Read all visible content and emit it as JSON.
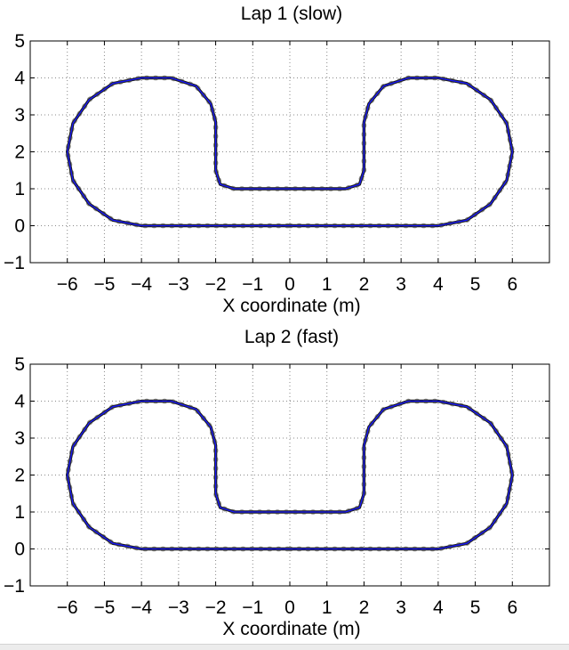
{
  "chart_data": [
    {
      "type": "line",
      "title": "Lap 1 (slow)",
      "xlabel": "X coordinate (m)",
      "ylabel": "",
      "xlim": [
        -7,
        7
      ],
      "ylim": [
        -1,
        5
      ],
      "xticks": [
        -6,
        -5,
        -4,
        -3,
        -2,
        -1,
        0,
        1,
        2,
        3,
        4,
        5,
        6
      ],
      "yticks": [
        -1,
        0,
        1,
        2,
        3,
        4,
        5
      ],
      "xtick_labels": [
        "−6",
        "−5",
        "−4",
        "−3",
        "−2",
        "−1",
        "0",
        "1",
        "2",
        "3",
        "4",
        "5",
        "6"
      ],
      "ytick_labels": [
        "−1",
        "0",
        "1",
        "2",
        "3",
        "4",
        "5"
      ],
      "grid": true,
      "grid_style": "dotted",
      "series": [
        {
          "role": "reference path",
          "style": "solid line",
          "color": "#1a1aff",
          "x": [
            0,
            4,
            4.77,
            5.41,
            5.85,
            6,
            5.85,
            5.41,
            4.77,
            4,
            3.2,
            2.53,
            2.13,
            2,
            2,
            1.88,
            1.5,
            1,
            0,
            -1,
            -1.5,
            -1.88,
            -2,
            -2,
            -2.13,
            -2.53,
            -3.2,
            -4,
            -4.77,
            -5.41,
            -5.85,
            -6,
            -5.85,
            -5.41,
            -4.77,
            -4,
            0
          ],
          "y": [
            0,
            0,
            0.15,
            0.59,
            1.23,
            2,
            2.77,
            3.41,
            3.85,
            4,
            4,
            3.78,
            3.3,
            2.8,
            1.5,
            1.12,
            1,
            1,
            1,
            1,
            1,
            1.12,
            1.5,
            2.8,
            3.3,
            3.78,
            4,
            4,
            3.85,
            3.41,
            2.77,
            2,
            1.23,
            0.59,
            0.15,
            0,
            0
          ]
        },
        {
          "role": "measured trajectory",
          "style": "dense markers",
          "color": "#000000",
          "x": [
            0,
            4,
            4.77,
            5.41,
            5.85,
            6,
            5.85,
            5.41,
            4.77,
            4,
            3.2,
            2.53,
            2.13,
            2,
            2,
            1.88,
            1.5,
            1,
            0,
            -1,
            -1.5,
            -1.88,
            -2,
            -2,
            -2.13,
            -2.53,
            -3.2,
            -4,
            -4.77,
            -5.41,
            -5.85,
            -6,
            -5.85,
            -5.41,
            -4.77,
            -4,
            0
          ],
          "y": [
            0,
            0,
            0.15,
            0.59,
            1.23,
            2,
            2.77,
            3.41,
            3.85,
            4,
            4,
            3.78,
            3.3,
            2.8,
            1.5,
            1.12,
            1,
            1,
            1,
            1,
            1,
            1.12,
            1.5,
            2.8,
            3.3,
            3.78,
            4,
            4,
            3.85,
            3.41,
            2.77,
            2,
            1.23,
            0.59,
            0.15,
            0,
            0
          ]
        }
      ]
    },
    {
      "type": "line",
      "title": "Lap 2 (fast)",
      "xlabel": "X coordinate (m)",
      "ylabel": "",
      "xlim": [
        -7,
        7
      ],
      "ylim": [
        -1,
        5
      ],
      "xticks": [
        -6,
        -5,
        -4,
        -3,
        -2,
        -1,
        0,
        1,
        2,
        3,
        4,
        5,
        6
      ],
      "yticks": [
        -1,
        0,
        1,
        2,
        3,
        4,
        5
      ],
      "xtick_labels": [
        "−6",
        "−5",
        "−4",
        "−3",
        "−2",
        "−1",
        "0",
        "1",
        "2",
        "3",
        "4",
        "5",
        "6"
      ],
      "ytick_labels": [
        "−1",
        "0",
        "1",
        "2",
        "3",
        "4",
        "5"
      ],
      "grid": true,
      "grid_style": "dotted",
      "series": [
        {
          "role": "reference path",
          "style": "solid line",
          "color": "#1a1aff",
          "x": [
            0,
            4,
            4.77,
            5.41,
            5.85,
            6,
            5.85,
            5.41,
            4.77,
            4,
            3.2,
            2.53,
            2.13,
            2,
            2,
            1.88,
            1.5,
            1,
            0,
            -1,
            -1.5,
            -1.88,
            -2,
            -2,
            -2.13,
            -2.53,
            -3.2,
            -4,
            -4.77,
            -5.41,
            -5.85,
            -6,
            -5.85,
            -5.41,
            -4.77,
            -4,
            0
          ],
          "y": [
            0,
            0,
            0.15,
            0.59,
            1.23,
            2,
            2.77,
            3.41,
            3.85,
            4,
            4,
            3.78,
            3.3,
            2.8,
            1.5,
            1.12,
            1,
            1,
            1,
            1,
            1,
            1.12,
            1.5,
            2.8,
            3.3,
            3.78,
            4,
            4,
            3.85,
            3.41,
            2.77,
            2,
            1.23,
            0.59,
            0.15,
            0,
            0
          ]
        },
        {
          "role": "measured trajectory",
          "style": "dense markers",
          "color": "#000000",
          "x": [
            0,
            4,
            4.77,
            5.41,
            5.85,
            6,
            5.85,
            5.41,
            4.77,
            4,
            3.2,
            2.53,
            2.13,
            2,
            2,
            1.88,
            1.5,
            1,
            0,
            -1,
            -1.5,
            -1.88,
            -2,
            -2,
            -2.13,
            -2.53,
            -3.2,
            -4,
            -4.77,
            -5.41,
            -5.85,
            -6,
            -5.85,
            -5.41,
            -4.77,
            -4,
            0
          ],
          "y": [
            0,
            0,
            0.15,
            0.59,
            1.23,
            2,
            2.77,
            3.41,
            3.85,
            4,
            4,
            3.78,
            3.3,
            2.8,
            1.5,
            1.12,
            1,
            1,
            1,
            1,
            1,
            1.12,
            1.5,
            2.8,
            3.3,
            3.78,
            4,
            4,
            3.85,
            3.41,
            2.77,
            2,
            1.23,
            0.59,
            0.15,
            0,
            0
          ]
        }
      ]
    }
  ]
}
